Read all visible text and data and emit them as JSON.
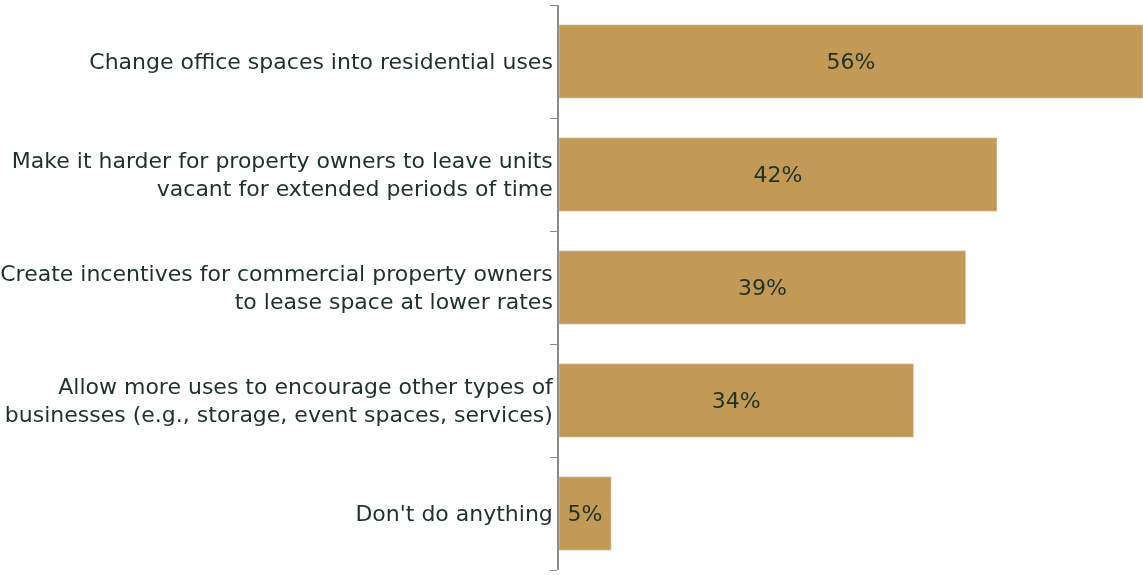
{
  "chart_data": {
    "type": "bar",
    "orientation": "horizontal",
    "categories": [
      "Change office spaces into residential uses",
      "Make it harder for property owners to leave units\nvacant for extended periods of time",
      "Create incentives for commercial property owners\nto lease space at lower rates",
      "Allow more uses to encourage other types of\nbusinesses (e.g., storage, event spaces, services)",
      "Don't do anything"
    ],
    "values": [
      56,
      42,
      39,
      34,
      5
    ],
    "value_labels": [
      "56%",
      "42%",
      "39%",
      "34%",
      "5%"
    ],
    "color": "#c39a55",
    "xlim": [
      0,
      56
    ],
    "tick_labels": "y",
    "legend": false
  }
}
